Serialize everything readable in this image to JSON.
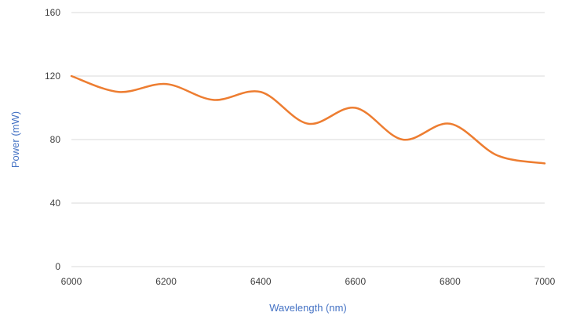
{
  "chart_data": {
    "type": "line",
    "xlabel": "Wavelength (nm)",
    "ylabel": "Power (mW)",
    "xlim": [
      6000,
      7000
    ],
    "ylim": [
      0,
      160
    ],
    "x_ticks": [
      6000,
      6200,
      6400,
      6600,
      6800,
      7000
    ],
    "y_ticks": [
      0,
      40,
      80,
      120,
      160
    ],
    "grid": "horizontal",
    "legend": "none",
    "series": [
      {
        "color": "#ed7d31",
        "x": [
          6000,
          6100,
          6200,
          6300,
          6400,
          6500,
          6600,
          6700,
          6800,
          6900,
          7000
        ],
        "values": [
          120,
          110,
          115,
          105,
          110,
          90,
          100,
          80,
          90,
          70,
          65
        ]
      }
    ]
  }
}
